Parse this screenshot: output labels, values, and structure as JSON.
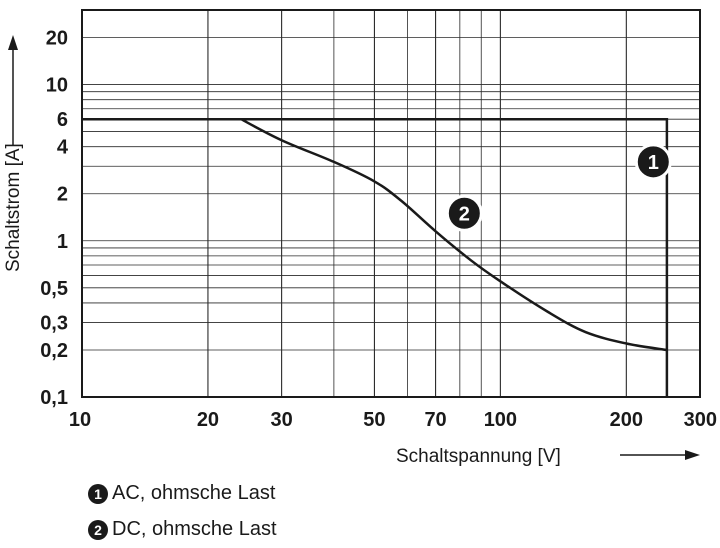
{
  "chart_data": {
    "type": "line",
    "xscale": "log",
    "yscale": "log",
    "xlim": [
      10,
      300
    ],
    "ylim": [
      0.1,
      30
    ],
    "xlabel": "Schaltspannung [V]",
    "ylabel": "Schaltstrom [A]",
    "x_ticks": [
      10,
      20,
      30,
      50,
      70,
      100,
      200,
      300
    ],
    "x_tick_labels": [
      "10",
      "20",
      "30",
      "50",
      "70",
      "100",
      "200",
      "300"
    ],
    "y_ticks": [
      0.1,
      0.2,
      0.3,
      0.5,
      1,
      2,
      4,
      6,
      10,
      20
    ],
    "y_tick_labels": [
      "0,1",
      "0,2",
      "0,3",
      "0,5",
      "1",
      "2",
      "4",
      "6",
      "10",
      "20"
    ],
    "x_grid": [
      10,
      20,
      30,
      40,
      50,
      60,
      70,
      80,
      90,
      100,
      200,
      300
    ],
    "y_grid": [
      0.1,
      0.2,
      0.3,
      0.4,
      0.5,
      0.6,
      0.7,
      0.8,
      0.9,
      1,
      2,
      3,
      4,
      5,
      6,
      7,
      8,
      9,
      10,
      20,
      30
    ],
    "grid": true,
    "series": [
      {
        "name": "AC, ohmsche Last",
        "marker": "1",
        "label_at": [
          232,
          3.2
        ],
        "x": [
          10,
          250,
          250
        ],
        "y": [
          6,
          6,
          0.1
        ]
      },
      {
        "name": "DC, ohmsche Last",
        "marker": "2",
        "label_at": [
          82,
          1.5
        ],
        "x": [
          24,
          30,
          40,
          50,
          58,
          70,
          85,
          100,
          130,
          160,
          200,
          250
        ],
        "y": [
          6,
          4.4,
          3.2,
          2.4,
          1.8,
          1.15,
          0.75,
          0.55,
          0.35,
          0.26,
          0.22,
          0.2
        ]
      }
    ]
  },
  "legend": {
    "items": [
      {
        "marker": "1",
        "label": "AC, ohmsche Last"
      },
      {
        "marker": "2",
        "label": "DC, ohmsche Last"
      }
    ]
  }
}
